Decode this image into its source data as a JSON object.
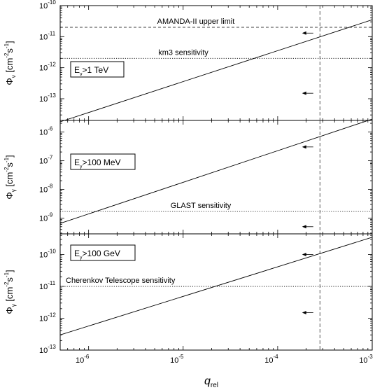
{
  "chart_data": [
    {
      "type": "line",
      "panel": "neutrino",
      "legend": {
        "base": "E",
        "sub": "ν",
        "rest": ">1 TeV"
      },
      "ylabel": {
        "symbol": "Φ",
        "sub": "ν",
        "unit": "[cm",
        "exp1": "-2",
        "mid": "s",
        "exp2": "-1",
        "close": "]"
      },
      "log_y": true,
      "ylim_exp": [
        -13.7,
        -10
      ],
      "y_ticks": [
        {
          "exp": -10,
          "base": "10",
          "sup": "-10"
        },
        {
          "exp": -11,
          "base": "10",
          "sup": "-11"
        },
        {
          "exp": -12,
          "base": "10",
          "sup": "-12"
        },
        {
          "exp": -13,
          "base": "10",
          "sup": "-13"
        }
      ],
      "series": [
        {
          "x": [
            5e-07,
            0.001
          ],
          "y": [
            1.8e-14,
            3.5e-11
          ],
          "style": "solid"
        }
      ],
      "reference_lines": [
        {
          "y": 2e-11,
          "style": "dashed",
          "label": "AMANDA-II upper limit"
        },
        {
          "y": 2e-12,
          "style": "dotted",
          "label": "km3 sensitivity"
        }
      ],
      "arrows": [
        {
          "x": 0.00023,
          "y": 1.3e-11
        },
        {
          "x": 0.00023,
          "y": 1.5e-13
        }
      ]
    },
    {
      "type": "line",
      "panel": "gamma-100MeV",
      "legend": {
        "base": "E",
        "sub": "γ",
        "rest": ">100 MeV"
      },
      "ylabel": {
        "symbol": "Φ",
        "sub": "γ",
        "unit": "[cm",
        "exp1": "-2",
        "mid": "s",
        "exp2": "-1",
        "close": "]"
      },
      "log_y": true,
      "ylim_exp": [
        -9.55,
        -5.6
      ],
      "y_ticks": [
        {
          "exp": -6,
          "base": "10",
          "sup": "-6"
        },
        {
          "exp": -7,
          "base": "10",
          "sup": "-7"
        },
        {
          "exp": -8,
          "base": "10",
          "sup": "-8"
        },
        {
          "exp": -9,
          "base": "10",
          "sup": "-9"
        }
      ],
      "series": [
        {
          "x": [
            5e-07,
            0.001
          ],
          "y": [
            6.5e-10,
            2.8e-06
          ],
          "style": "solid"
        }
      ],
      "reference_lines": [
        {
          "y": 1.7e-09,
          "style": "dotted",
          "label": "GLAST sensitivity"
        }
      ],
      "arrows": [
        {
          "x": 0.00023,
          "y": 3e-07
        },
        {
          "x": 0.00023,
          "y": 5e-10
        }
      ]
    },
    {
      "type": "line",
      "panel": "gamma-100GeV",
      "legend": {
        "base": "E",
        "sub": "γ",
        "rest": ">100 GeV"
      },
      "ylabel": {
        "symbol": "Φ",
        "sub": "γ",
        "unit": "[cm",
        "exp1": "-2",
        "mid": "s",
        "exp2": "-1",
        "close": "]"
      },
      "log_y": true,
      "ylim_exp": [
        -13,
        -9.35
      ],
      "y_ticks": [
        {
          "exp": -10,
          "base": "10",
          "sup": "-10"
        },
        {
          "exp": -11,
          "base": "10",
          "sup": "-11"
        },
        {
          "exp": -12,
          "base": "10",
          "sup": "-12"
        },
        {
          "exp": -13,
          "base": "10",
          "sup": "-13"
        }
      ],
      "series": [
        {
          "x": [
            5e-07,
            0.001
          ],
          "y": [
            3e-13,
            3.5e-10
          ],
          "style": "solid"
        }
      ],
      "reference_lines": [
        {
          "y": 1e-11,
          "style": "dotted",
          "label": "Cherenkov Telescope sensitivity"
        }
      ],
      "arrows": [
        {
          "x": 0.00023,
          "y": 1e-10
        },
        {
          "x": 0.00023,
          "y": 1.5e-12
        }
      ]
    }
  ],
  "shared_x": {
    "log": true,
    "xlim": [
      5e-07,
      0.001
    ],
    "ticks": [
      {
        "v": 1e-06,
        "base": "10",
        "sup": "-6"
      },
      {
        "v": 1e-05,
        "base": "10",
        "sup": "-5"
      },
      {
        "v": 0.0001,
        "base": "10",
        "sup": "-4"
      },
      {
        "v": 0.001,
        "base": "10",
        "sup": "-3"
      }
    ],
    "label": {
      "symbol": "q",
      "sub": "rel"
    },
    "vertical_marker": {
      "x": 0.00028,
      "style": "dashed"
    }
  }
}
